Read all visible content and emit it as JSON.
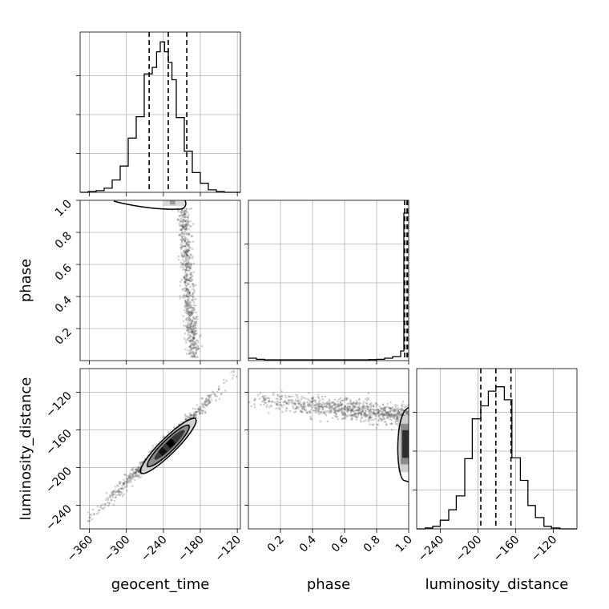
{
  "chart_data": {
    "type": "corner",
    "parameters": [
      "geocent_time",
      "phase",
      "luminosity_distance"
    ],
    "axes": {
      "geocent_time": {
        "label": "geocent_time",
        "range": [
          -375,
          -115
        ],
        "ticks": [
          -360,
          -300,
          -240,
          -180,
          -120
        ],
        "tick_labels": [
          "−360",
          "−300",
          "−240",
          "−180",
          "−120"
        ]
      },
      "phase": {
        "label": "phase",
        "range": [
          0.0,
          1.0
        ],
        "ticks": [
          0.2,
          0.4,
          0.6,
          0.8,
          1.0
        ],
        "tick_labels": [
          "0.2",
          "0.4",
          "0.6",
          "0.8",
          "1.0"
        ]
      },
      "luminosity_distance": {
        "label": "luminosity_distance",
        "range": [
          -265,
          -95
        ],
        "ticks": [
          -240,
          -200,
          -160,
          -120
        ],
        "tick_labels": [
          "−240",
          "−200",
          "−160",
          "−120"
        ]
      }
    },
    "histograms": [
      {
        "parameter": "geocent_time",
        "bin_edges": [
          -375,
          -362,
          -349,
          -336,
          -323,
          -310,
          -297,
          -284,
          -271,
          -258,
          -251,
          -245,
          -238,
          -232,
          -226,
          -219,
          -206,
          -193,
          -180,
          -167,
          -154,
          -141,
          -128,
          -115
        ],
        "counts": [
          0,
          1,
          2,
          5,
          15,
          32,
          66,
          92,
          144,
          152,
          171,
          183,
          171,
          158,
          137,
          91,
          50,
          24,
          11,
          3,
          1,
          0,
          0
        ],
        "quantiles": [
          -263,
          -232,
          -202
        ],
        "ymax": 195
      },
      {
        "parameter": "phase",
        "bin_edges": [
          0.0,
          0.05,
          0.1,
          0.15,
          0.2,
          0.25,
          0.3,
          0.35,
          0.4,
          0.45,
          0.5,
          0.55,
          0.6,
          0.65,
          0.7,
          0.75,
          0.8,
          0.85,
          0.9,
          0.95,
          0.97,
          1.0
        ],
        "counts": [
          1.5,
          0.8,
          0.5,
          0.5,
          0.5,
          0.5,
          0.5,
          0.5,
          0.5,
          0.5,
          0.5,
          0.5,
          0.5,
          0.5,
          0.5,
          0.6,
          0.8,
          1.5,
          2.5,
          6,
          92
        ],
        "quantiles": [
          0.975,
          0.99,
          0.998
        ],
        "ymax": 100
      },
      {
        "parameter": "luminosity_distance",
        "bin_edges": [
          -265,
          -256,
          -248,
          -240,
          -231,
          -223,
          -214,
          -206,
          -197,
          -189,
          -181,
          -172,
          -164,
          -155,
          -147,
          -139,
          -130,
          -122,
          -113,
          -105,
          -95
        ],
        "counts": [
          0,
          1,
          3,
          10,
          22,
          38,
          81,
          127,
          142,
          159,
          164,
          149,
          82,
          56,
          27,
          13,
          3,
          1,
          0,
          0
        ],
        "quantiles": [
          -197,
          -181,
          -165
        ],
        "ymax": 185
      }
    ],
    "scatter_2d": [
      {
        "x": "geocent_time",
        "y": "phase",
        "description_points": "samples concentrated at phase≈1 near geocent_time -258..-205, with a tail descending to phase≈0 near geocent_time -205..-190",
        "core": {
          "x": [
            -258,
            -205
          ],
          "y": [
            0.965,
            1.0
          ]
        },
        "tail": {
          "x_top": -208,
          "x_bottom": -190,
          "y_top": 0.95,
          "y_bottom": 0.02
        }
      },
      {
        "x": "geocent_time",
        "y": "luminosity_distance",
        "line": {
          "x": [
            -360,
            -125
          ],
          "y": [
            -255,
            -103
          ]
        },
        "core": {
          "center": [
            -232,
            -177
          ],
          "extent_x": [
            -275,
            -190
          ]
        }
      },
      {
        "x": "phase",
        "y": "luminosity_distance",
        "band": {
          "x": [
            0.0,
            1.0
          ],
          "y_start": -128,
          "y_end": -145
        },
        "core": {
          "x": 0.98,
          "y": [
            -205,
            -145
          ]
        }
      }
    ]
  }
}
